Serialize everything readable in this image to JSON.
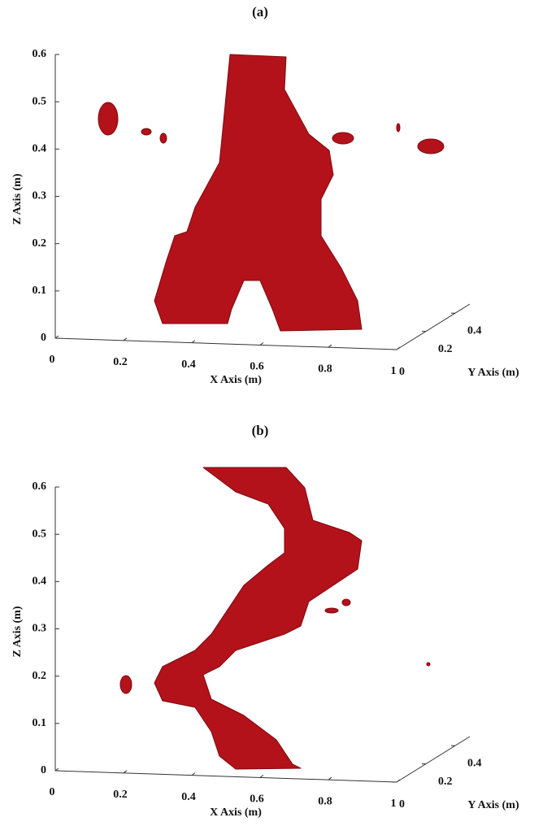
{
  "chart_data": [
    {
      "type": "isosurface3d",
      "title": "(a)",
      "xlabel": "X Axis (m)",
      "ylabel": "Y Axis (m)",
      "zlabel": "Z Axis (m)",
      "xlim": [
        0,
        1
      ],
      "xticks": [
        0,
        0.2,
        0.4,
        0.6,
        0.8,
        1
      ],
      "ylim": [
        0,
        0.5
      ],
      "yticks": [
        0,
        0.2,
        0.4
      ],
      "zlim": [
        0,
        0.6
      ],
      "zticks": [
        0,
        0.1,
        0.2,
        0.3,
        0.4,
        0.5,
        0.6
      ],
      "color": "#b3121b",
      "grid": false
    },
    {
      "type": "isosurface3d",
      "title": "(b)",
      "xlabel": "X Axis (m)",
      "ylabel": "Y Axis (m)",
      "zlabel": "Z Axis (m)",
      "xlim": [
        0,
        1
      ],
      "xticks": [
        0,
        0.2,
        0.4,
        0.6,
        0.8,
        1
      ],
      "ylim": [
        0,
        0.5
      ],
      "yticks": [
        0,
        0.2,
        0.4
      ],
      "zlim": [
        0,
        0.6
      ],
      "zticks": [
        0,
        0.1,
        0.2,
        0.3,
        0.4,
        0.5,
        0.6
      ],
      "color": "#b3121b",
      "grid": false
    }
  ]
}
